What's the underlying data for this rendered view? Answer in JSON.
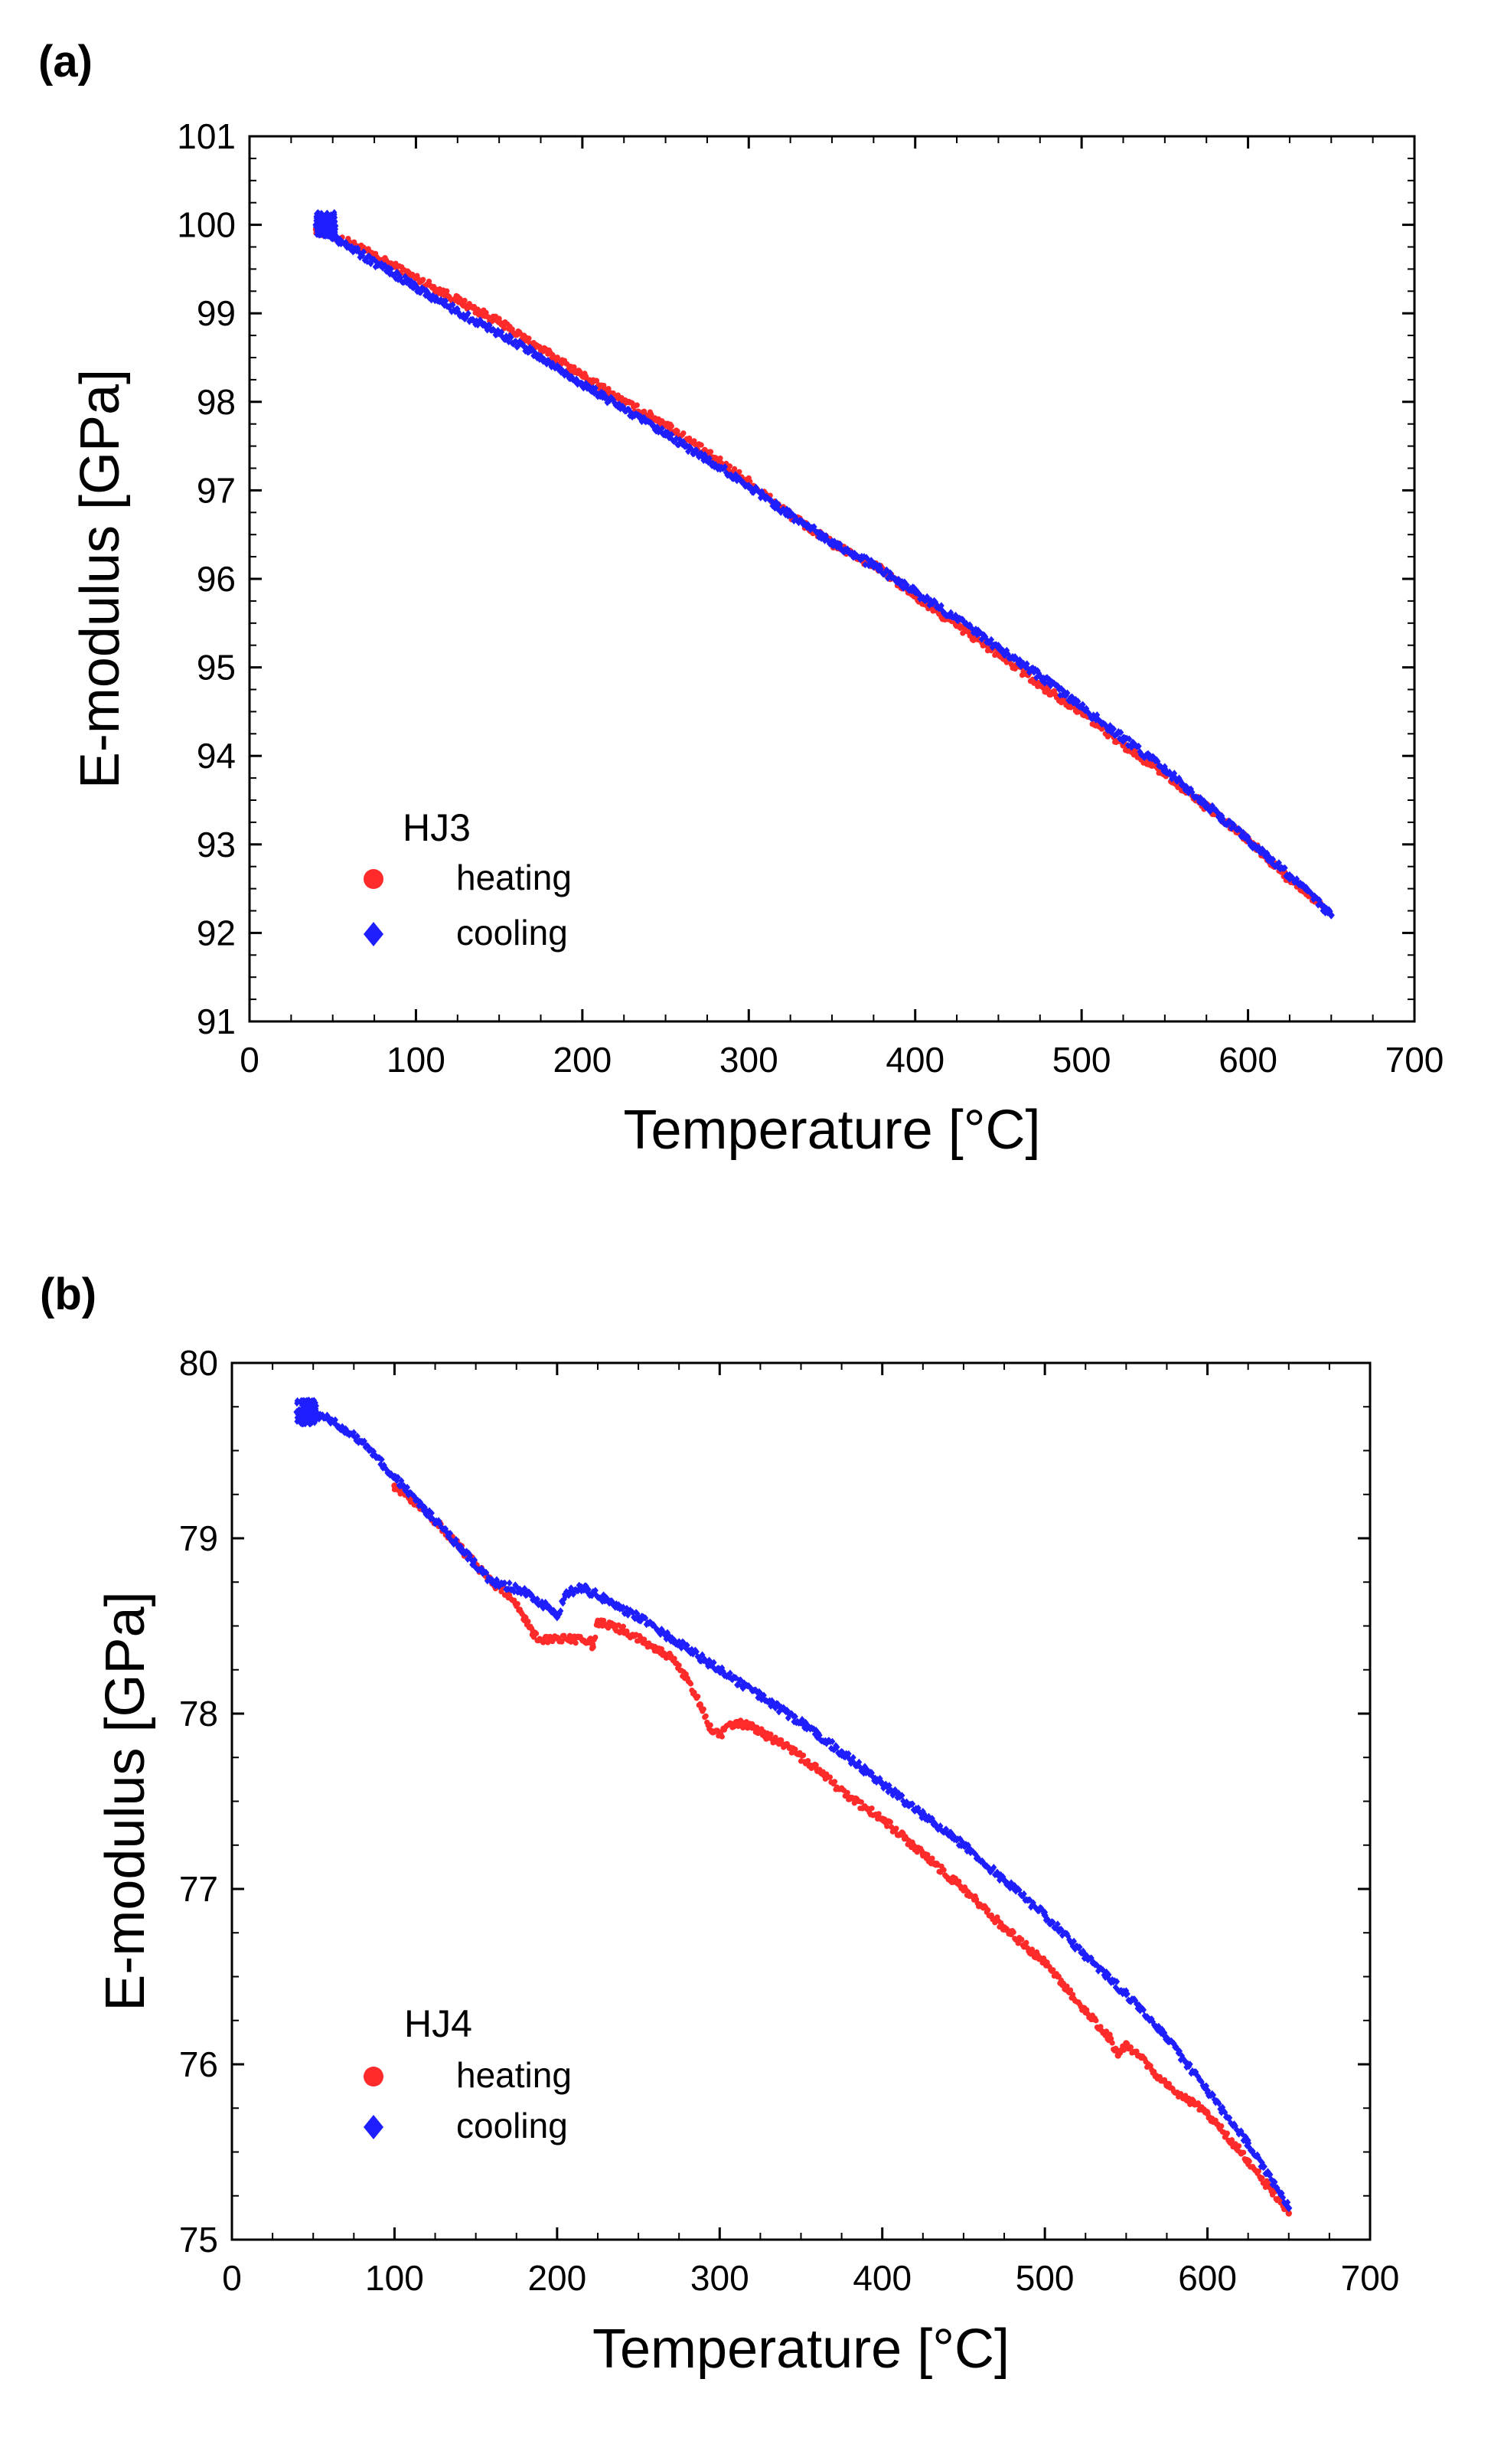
{
  "chart_data": [
    {
      "type": "scatter",
      "panel_label": "(a)",
      "xlabel": "Temperature [°C]",
      "ylabel": "E-modulus [GPa]",
      "xlim": [
        0,
        700
      ],
      "ylim": [
        91,
        101
      ],
      "xticks": [
        0,
        100,
        200,
        300,
        400,
        500,
        600,
        700
      ],
      "yticks": [
        91,
        92,
        93,
        94,
        95,
        96,
        97,
        98,
        99,
        100,
        101
      ],
      "legend": {
        "title": "HJ3",
        "position": "bottom-left"
      },
      "series": [
        {
          "name": "heating",
          "color": "#ff2a2a",
          "marker": "circle",
          "x": [
            40,
            60,
            80,
            100,
            125,
            150,
            175,
            200,
            225,
            250,
            275,
            300,
            325,
            350,
            380,
            400,
            425,
            450,
            475,
            500,
            525,
            550,
            575,
            600,
            625,
            645
          ],
          "y": [
            99.95,
            99.8,
            99.6,
            99.4,
            99.15,
            98.9,
            98.6,
            98.3,
            98.0,
            97.75,
            97.42,
            97.1,
            96.72,
            96.4,
            96.1,
            95.8,
            95.47,
            95.15,
            94.8,
            94.5,
            94.12,
            93.8,
            93.42,
            93.05,
            92.6,
            92.3
          ]
        },
        {
          "name": "cooling",
          "color": "#1e1eff",
          "marker": "diamond",
          "x": [
            40,
            60,
            80,
            100,
            125,
            150,
            175,
            200,
            225,
            250,
            275,
            300,
            325,
            350,
            375,
            400,
            425,
            450,
            475,
            500,
            525,
            550,
            575,
            600,
            625,
            650
          ],
          "y": [
            100.0,
            99.75,
            99.52,
            99.3,
            99.02,
            98.78,
            98.5,
            98.2,
            97.92,
            97.63,
            97.35,
            97.05,
            96.72,
            96.42,
            96.15,
            95.85,
            95.55,
            95.22,
            94.9,
            94.55,
            94.2,
            93.85,
            93.45,
            93.05,
            92.65,
            92.2
          ]
        }
      ]
    },
    {
      "type": "scatter",
      "panel_label": "(b)",
      "xlabel": "Temperature [°C]",
      "ylabel": "E-modulus [GPa]",
      "xlim": [
        0,
        700
      ],
      "ylim": [
        75,
        80
      ],
      "xticks": [
        0,
        100,
        200,
        300,
        400,
        500,
        600,
        700
      ],
      "yticks": [
        75,
        76,
        77,
        78,
        79,
        80
      ],
      "legend": {
        "title": "HJ4",
        "position": "bottom-left"
      },
      "series": [
        {
          "name": "heating",
          "color": "#ff2a2a",
          "marker": "circle",
          "x": [
            100,
            120,
            140,
            160,
            170,
            180,
            185,
            190,
            200,
            210,
            220,
            222,
            225,
            240,
            260,
            270,
            280,
            288,
            295,
            300,
            310,
            320,
            340,
            360,
            380,
            400,
            425,
            450,
            475,
            500,
            525,
            540,
            545,
            550,
            575,
            600,
            625,
            650
          ],
          "y": [
            79.3,
            79.15,
            78.95,
            78.75,
            78.68,
            78.55,
            78.45,
            78.42,
            78.43,
            78.42,
            78.42,
            78.38,
            78.52,
            78.48,
            78.38,
            78.32,
            78.2,
            78.05,
            77.9,
            77.88,
            77.95,
            77.92,
            77.82,
            77.68,
            77.52,
            77.4,
            77.2,
            77.0,
            76.78,
            76.58,
            76.3,
            76.15,
            76.05,
            76.12,
            75.88,
            75.72,
            75.45,
            75.15
          ]
        },
        {
          "name": "cooling",
          "color": "#1e1eff",
          "marker": "diamond",
          "x": [
            40,
            60,
            80,
            100,
            120,
            140,
            160,
            180,
            195,
            200,
            205,
            215,
            230,
            250,
            275,
            300,
            325,
            350,
            375,
            400,
            425,
            450,
            475,
            500,
            525,
            550,
            575,
            600,
            625,
            650
          ],
          "y": [
            79.72,
            79.68,
            79.55,
            79.35,
            79.15,
            78.95,
            78.75,
            78.7,
            78.6,
            78.55,
            78.68,
            78.72,
            78.65,
            78.55,
            78.4,
            78.25,
            78.1,
            77.95,
            77.78,
            77.6,
            77.42,
            77.25,
            77.05,
            76.85,
            76.62,
            76.4,
            76.15,
            75.85,
            75.55,
            75.18
          ]
        }
      ]
    }
  ]
}
